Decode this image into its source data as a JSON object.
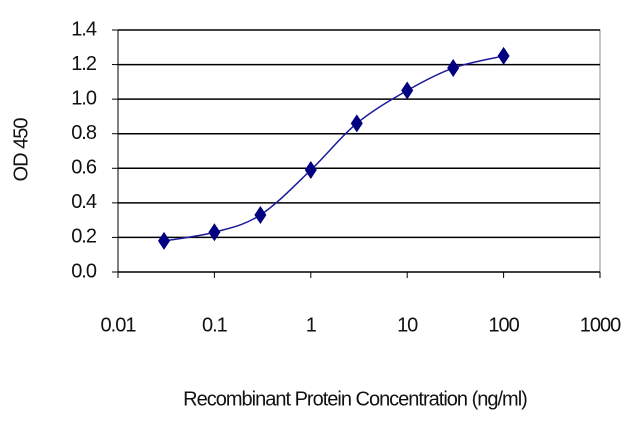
{
  "chart_data": {
    "type": "line",
    "xscale": "log",
    "x_label": "Recombinant Protein Concentration (ng/ml)",
    "y_label": "OD 450",
    "x": [
      0.03,
      0.1,
      0.3,
      1,
      3,
      10,
      30,
      100
    ],
    "values": [
      0.18,
      0.23,
      0.33,
      0.59,
      0.86,
      1.05,
      1.18,
      1.25
    ],
    "color": "#1a1a9a",
    "marker_color": "#000080",
    "xlim": [
      0.01,
      1000
    ],
    "xticks": [
      0.01,
      0.1,
      1,
      10,
      100,
      1000
    ],
    "ylim": [
      0,
      1.4
    ],
    "yticks": [
      {
        "value": 0,
        "label": "0.0"
      },
      0.2,
      0.4,
      0.6,
      0.8,
      {
        "value": 1,
        "label": "1.0"
      },
      1.2,
      1.4
    ],
    "grid": true
  }
}
